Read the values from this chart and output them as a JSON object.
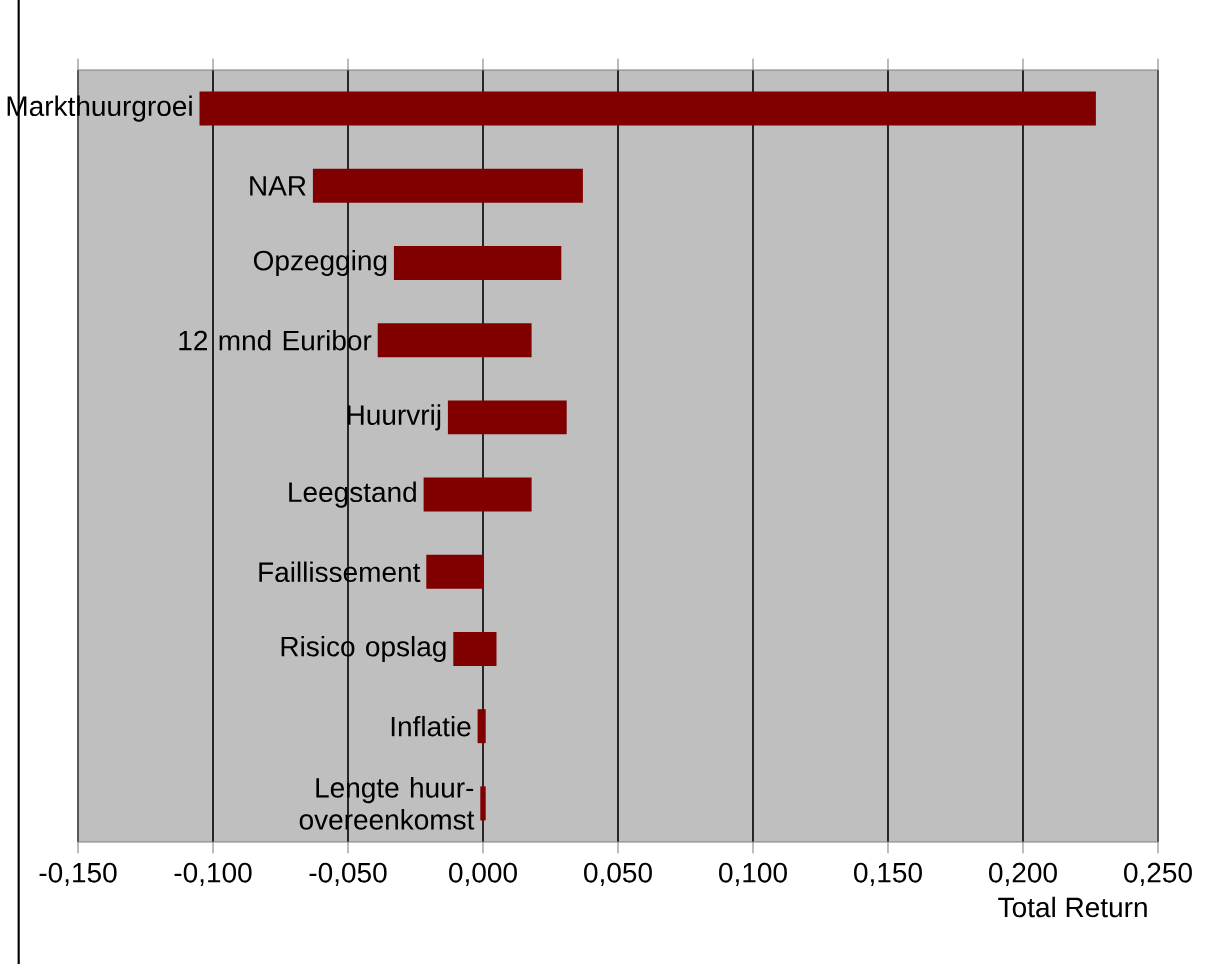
{
  "chart_data": {
    "type": "bar",
    "orientation": "horizontal",
    "xlabel": "Total Return",
    "categories": [
      "Markthuurgroei",
      "NAR",
      "Opzegging",
      "12 mnd Euribor",
      "Huurvrij",
      "Leegstand",
      "Faillissement",
      "Risico opslag",
      "Inflatie",
      "Lengte huur-overeenkomst"
    ],
    "base": [
      -0.105,
      -0.063,
      -0.033,
      -0.039,
      -0.013,
      -0.022,
      -0.021,
      -0.011,
      -0.002,
      -0.001
    ],
    "values": [
      0.332,
      0.1,
      0.062,
      0.057,
      0.044,
      0.04,
      0.021,
      0.016,
      0.003,
      0.002
    ],
    "color": "#800000",
    "xlim": [
      -0.15,
      0.25
    ],
    "xticks": [
      {
        "value": -0.15,
        "label": "-0,150"
      },
      {
        "value": -0.1,
        "label": "-0,100"
      },
      {
        "value": -0.05,
        "label": "-0,050"
      },
      {
        "value": 0,
        "label": "0,000"
      },
      {
        "value": 0.05,
        "label": "0,050"
      },
      {
        "value": 0.1,
        "label": "0,100"
      },
      {
        "value": 0.15,
        "label": "0,150"
      },
      {
        "value": 0.2,
        "label": "0,200"
      },
      {
        "value": 0.25,
        "label": "0,250"
      }
    ],
    "grid": "x"
  }
}
